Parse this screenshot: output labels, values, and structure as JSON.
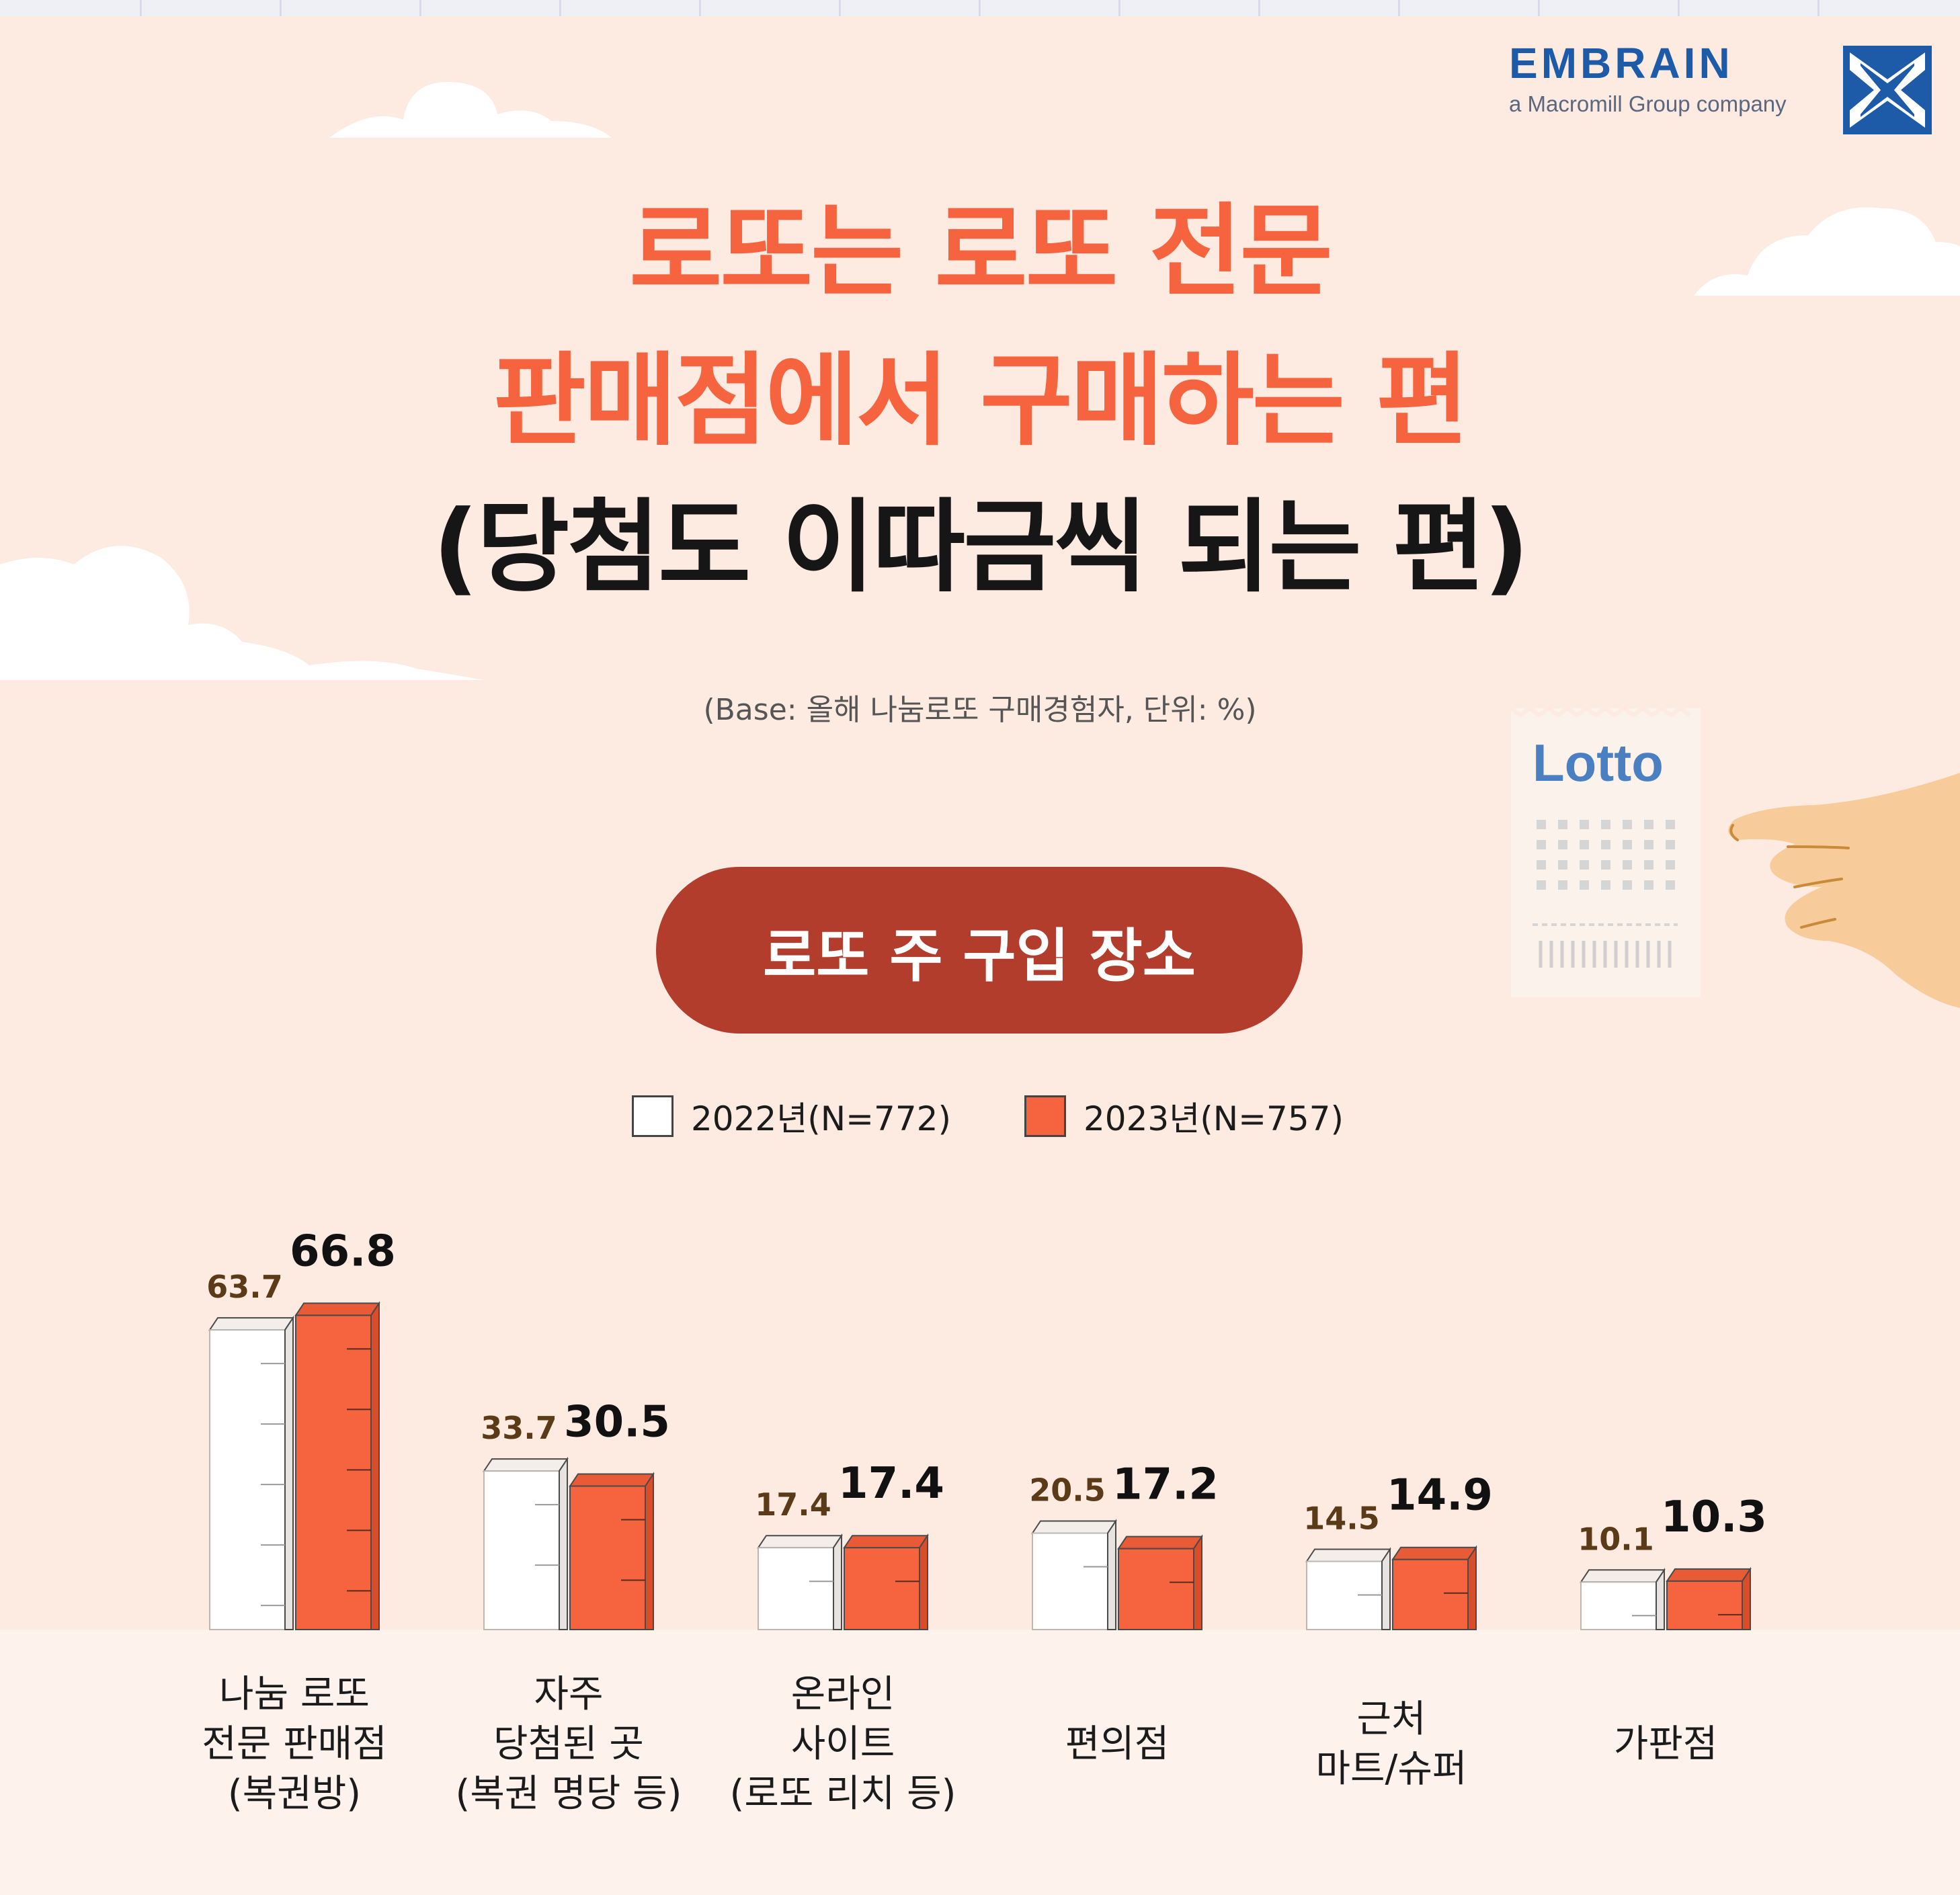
{
  "brand": {
    "name": "EMBRAIN",
    "tagline": "a Macromill Group company",
    "color": "#1d5aa8"
  },
  "title": {
    "line1": "로또는 로또 전문",
    "line2": "판매점에서 구매하는 편",
    "line3": "(당첨도 이따금씩 되는 편)"
  },
  "base_note": "(Base: 올해 나눔로또 구매경험자, 단위: %)",
  "illustration": {
    "ticket_text": "Lotto"
  },
  "section": {
    "label": "로또 주 구입 장소",
    "color": "#b23d2c"
  },
  "colors": {
    "series_2022": "#ffffff",
    "series_2023": "#f5643f",
    "title_accent": "#f5643f",
    "background": "#fdeae1"
  },
  "chart_data": {
    "type": "bar",
    "title": "로또 주 구입 장소",
    "unit": "%",
    "categories": [
      [
        "나눔 로또",
        "전문 판매점",
        "(복권방)"
      ],
      [
        "자주",
        "당첨된 곳",
        "(복권 명당 등)"
      ],
      [
        "온라인",
        "사이트",
        "(로또 리치 등)"
      ],
      [
        "편의점"
      ],
      [
        "근처",
        "마트/슈퍼"
      ],
      [
        "가판점"
      ]
    ],
    "series": [
      {
        "name": "2022년(N=772)",
        "values": [
          63.7,
          33.7,
          17.4,
          20.5,
          14.5,
          10.1
        ],
        "color": "#ffffff"
      },
      {
        "name": "2023년(N=757)",
        "values": [
          66.8,
          30.5,
          17.4,
          17.2,
          14.9,
          10.3
        ],
        "color": "#f5643f"
      }
    ],
    "value_labels": {
      "2022": [
        "63.7",
        "33.7",
        "17.4",
        "20.5",
        "14.5",
        "10.1"
      ],
      "2023": [
        "66.8",
        "30.5",
        "17.4",
        "17.2",
        "14.9",
        "10.3"
      ]
    },
    "legend": "top-center",
    "grid": false
  }
}
